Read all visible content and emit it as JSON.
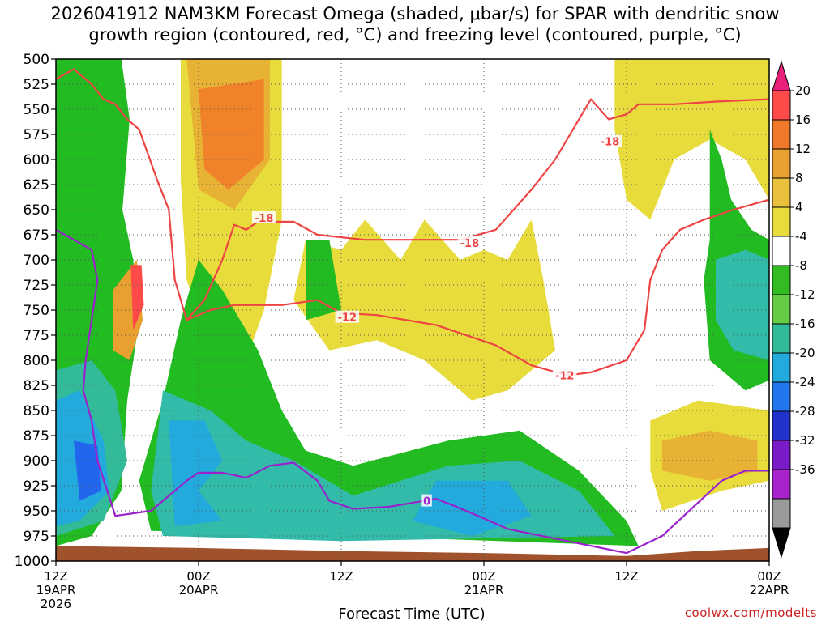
{
  "chart_data": {
    "type": "heatmap",
    "title_line1": "2026041912 NAM3KM Forecast Omega (shaded, μbar/s) for SPAR with dendritic snow",
    "title_line2": "growth region (contoured, red, °C) and freezing level (contoured, purple, °C)",
    "xlabel": "Forecast Time (UTC)",
    "credit": "coolwx.com/modelts",
    "x_hours_range": [
      0,
      60
    ],
    "y_pressure_range": [
      500,
      1000
    ],
    "y_ticks": [
      "500",
      "525",
      "550",
      "575",
      "600",
      "625",
      "650",
      "675",
      "700",
      "725",
      "750",
      "775",
      "800",
      "825",
      "850",
      "875",
      "900",
      "925",
      "950",
      "975",
      "1000"
    ],
    "x_ticks": [
      {
        "hour": 0,
        "line1": "12Z",
        "line2": "19APR",
        "line3": "2026"
      },
      {
        "hour": 12,
        "line1": "00Z",
        "line2": "20APR",
        "line3": ""
      },
      {
        "hour": 24,
        "line1": "12Z",
        "line2": "",
        "line3": ""
      },
      {
        "hour": 36,
        "line1": "00Z",
        "line2": "21APR",
        "line3": ""
      },
      {
        "hour": 48,
        "line1": "12Z",
        "line2": "",
        "line3": ""
      },
      {
        "hour": 60,
        "line1": "00Z",
        "line2": "22APR",
        "line3": ""
      }
    ],
    "colorbar": {
      "labels": [
        "20",
        "16",
        "12",
        "8",
        "4",
        "-4",
        "-8",
        "-12",
        "-16",
        "-20",
        "-24",
        "-28",
        "-32",
        "-36"
      ],
      "colors": [
        "#ff4a4a",
        "#f0782a",
        "#e8a030",
        "#eac13c",
        "#e8dc3c",
        "#ffffff",
        "#33bb22",
        "#66cc44",
        "#33bb99",
        "#22aadd",
        "#2277ee",
        "#2233cc",
        "#7a1bc8",
        "#aa22cc",
        "#999999"
      ],
      "top_arrow_color": "#e8207a",
      "bottom_arrow_color": "#000000"
    },
    "shaded_regions": [
      {
        "name": "omega-region-1",
        "value": -8,
        "color": "#22bb22",
        "points": [
          [
            0,
            500
          ],
          [
            5.5,
            500
          ],
          [
            6.2,
            560
          ],
          [
            5.6,
            650
          ],
          [
            6.5,
            700
          ],
          [
            7,
            760
          ],
          [
            6,
            840
          ],
          [
            5.5,
            930
          ],
          [
            3,
            975
          ],
          [
            0,
            985
          ]
        ]
      },
      {
        "name": "omega-region-2",
        "value": -12,
        "color": "#33bb99",
        "points": [
          [
            0,
            810
          ],
          [
            3,
            800
          ],
          [
            5,
            830
          ],
          [
            6,
            900
          ],
          [
            4,
            960
          ],
          [
            0,
            975
          ]
        ]
      },
      {
        "name": "omega-region-3",
        "value": -16,
        "color": "#22aadd",
        "points": [
          [
            0,
            840
          ],
          [
            2,
            830
          ],
          [
            4,
            880
          ],
          [
            4.5,
            930
          ],
          [
            2,
            960
          ],
          [
            0,
            965
          ]
        ]
      },
      {
        "name": "omega-region-4",
        "value": -20,
        "color": "#2266ee",
        "points": [
          [
            1.5,
            880
          ],
          [
            3.5,
            885
          ],
          [
            3.8,
            930
          ],
          [
            2,
            940
          ]
        ]
      },
      {
        "name": "omega-region-5",
        "value": 4,
        "color": "#e8dc3c",
        "points": [
          [
            10.5,
            500
          ],
          [
            19,
            500
          ],
          [
            19,
            660
          ],
          [
            17.5,
            750
          ],
          [
            16,
            800
          ],
          [
            13,
            790
          ],
          [
            11,
            720
          ],
          [
            10.5,
            620
          ]
        ]
      },
      {
        "name": "omega-region-6",
        "value": 8,
        "color": "#e8b234",
        "points": [
          [
            11,
            500
          ],
          [
            18,
            500
          ],
          [
            18,
            600
          ],
          [
            15,
            650
          ],
          [
            12,
            630
          ]
        ]
      },
      {
        "name": "omega-region-7",
        "value": 12,
        "color": "#f0822a",
        "points": [
          [
            12,
            530
          ],
          [
            17.5,
            520
          ],
          [
            17.5,
            600
          ],
          [
            14.5,
            630
          ],
          [
            12.5,
            610
          ]
        ]
      },
      {
        "name": "omega-region-8",
        "value": 12,
        "color": "#e8a030",
        "points": [
          [
            4.8,
            730
          ],
          [
            6.8,
            700
          ],
          [
            7.3,
            760
          ],
          [
            6.2,
            800
          ],
          [
            4.8,
            790
          ]
        ]
      },
      {
        "name": "omega-region-9",
        "value": 16,
        "color": "#ff4a4a",
        "points": [
          [
            6.3,
            705
          ],
          [
            7.2,
            705
          ],
          [
            7.4,
            745
          ],
          [
            6.5,
            770
          ]
        ]
      },
      {
        "name": "omega-region-10",
        "value": -8,
        "color": "#22bb22",
        "points": [
          [
            12,
            700
          ],
          [
            14,
            730
          ],
          [
            17,
            790
          ],
          [
            19,
            850
          ],
          [
            21,
            890
          ],
          [
            25,
            905
          ],
          [
            33,
            880
          ],
          [
            39,
            870
          ],
          [
            44,
            910
          ],
          [
            48,
            960
          ],
          [
            49,
            985
          ],
          [
            25,
            975
          ],
          [
            8,
            970
          ],
          [
            7,
            920
          ],
          [
            9,
            840
          ],
          [
            10.5,
            760
          ]
        ]
      },
      {
        "name": "omega-region-11",
        "value": -12,
        "color": "#33bbaa",
        "points": [
          [
            9,
            830
          ],
          [
            13,
            850
          ],
          [
            16,
            880
          ],
          [
            20,
            900
          ],
          [
            25,
            935
          ],
          [
            33,
            905
          ],
          [
            39,
            900
          ],
          [
            44,
            930
          ],
          [
            47,
            975
          ],
          [
            24,
            980
          ],
          [
            9,
            975
          ],
          [
            8,
            930
          ]
        ]
      },
      {
        "name": "omega-region-12",
        "value": -16,
        "color": "#22aadd",
        "points": [
          [
            9.5,
            860
          ],
          [
            12.5,
            860
          ],
          [
            14,
            900
          ],
          [
            12,
            930
          ],
          [
            14,
            960
          ],
          [
            10,
            965
          ]
        ]
      },
      {
        "name": "omega-region-13",
        "value": -16,
        "color": "#22aadd",
        "points": [
          [
            32,
            920
          ],
          [
            38,
            920
          ],
          [
            40,
            955
          ],
          [
            35,
            975
          ],
          [
            30,
            960
          ]
        ]
      },
      {
        "name": "omega-region-14",
        "value": 4,
        "color": "#e8dc3c",
        "points": [
          [
            21,
            680
          ],
          [
            24,
            690
          ],
          [
            26,
            660
          ],
          [
            29,
            700
          ],
          [
            31,
            660
          ],
          [
            34,
            700
          ],
          [
            36,
            690
          ],
          [
            38,
            700
          ],
          [
            40,
            660
          ],
          [
            41,
            720
          ],
          [
            42,
            790
          ],
          [
            38,
            830
          ],
          [
            35,
            840
          ],
          [
            31,
            800
          ],
          [
            27,
            780
          ],
          [
            23,
            790
          ],
          [
            20,
            740
          ]
        ]
      },
      {
        "name": "omega-region-15",
        "value": 4,
        "color": "#e8dc3c",
        "points": [
          [
            47,
            500
          ],
          [
            60,
            500
          ],
          [
            60,
            640
          ],
          [
            58,
            600
          ],
          [
            55,
            580
          ],
          [
            52,
            600
          ],
          [
            50,
            660
          ],
          [
            48,
            640
          ],
          [
            47,
            570
          ]
        ]
      },
      {
        "name": "omega-region-16",
        "value": 4,
        "color": "#e8dc3c",
        "points": [
          [
            50,
            860
          ],
          [
            54,
            840
          ],
          [
            60,
            850
          ],
          [
            60,
            920
          ],
          [
            56,
            930
          ],
          [
            51,
            950
          ],
          [
            50,
            910
          ]
        ]
      },
      {
        "name": "omega-region-17",
        "value": 8,
        "color": "#e8b234",
        "points": [
          [
            51,
            880
          ],
          [
            55,
            870
          ],
          [
            59,
            880
          ],
          [
            59,
            910
          ],
          [
            55,
            920
          ],
          [
            51,
            910
          ]
        ]
      },
      {
        "name": "omega-region-18",
        "value": -8,
        "color": "#22bb22",
        "points": [
          [
            55,
            570
          ],
          [
            56,
            600
          ],
          [
            56.8,
            640
          ],
          [
            58.5,
            670
          ],
          [
            60,
            680
          ],
          [
            60,
            820
          ],
          [
            58,
            830
          ],
          [
            55,
            800
          ],
          [
            54.5,
            720
          ],
          [
            55,
            680
          ]
        ]
      },
      {
        "name": "omega-region-19",
        "value": -12,
        "color": "#33bbaa",
        "points": [
          [
            55.5,
            700
          ],
          [
            58,
            690
          ],
          [
            60,
            700
          ],
          [
            60,
            800
          ],
          [
            57,
            790
          ],
          [
            55.5,
            760
          ]
        ]
      },
      {
        "name": "omega-region-20",
        "value": -8,
        "color": "#22bb22",
        "points": [
          [
            21,
            680
          ],
          [
            23,
            680
          ],
          [
            24,
            750
          ],
          [
            21,
            760
          ]
        ]
      }
    ],
    "contours": [
      {
        "name": "dgz-minus18",
        "label": "-18",
        "color": "#ee4444",
        "points": [
          [
            0,
            520
          ],
          [
            1.5,
            510
          ],
          [
            3,
            525
          ],
          [
            4,
            540
          ],
          [
            5,
            545
          ],
          [
            6,
            560
          ],
          [
            7,
            570
          ],
          [
            8.5,
            620
          ],
          [
            9.5,
            650
          ],
          [
            10,
            720
          ],
          [
            11,
            760
          ],
          [
            12.5,
            740
          ],
          [
            14,
            700
          ],
          [
            15,
            665
          ],
          [
            16,
            670
          ],
          [
            17,
            662
          ],
          [
            20,
            662
          ],
          [
            22,
            675
          ],
          [
            26,
            680
          ],
          [
            31,
            680
          ],
          [
            34,
            680
          ],
          [
            37,
            670
          ],
          [
            40,
            630
          ],
          [
            42,
            600
          ],
          [
            45,
            540
          ],
          [
            46.5,
            560
          ],
          [
            48,
            555
          ],
          [
            49,
            545
          ],
          [
            52,
            545
          ],
          [
            56,
            542
          ],
          [
            60,
            540
          ]
        ],
        "label_at": [
          [
            17.5,
            658
          ],
          [
            34.8,
            683
          ],
          [
            46.6,
            582
          ]
        ]
      },
      {
        "name": "dgz-minus12",
        "label": "-12",
        "color": "#ee4444",
        "points": [
          [
            11,
            760
          ],
          [
            13,
            750
          ],
          [
            15,
            745
          ],
          [
            19,
            745
          ],
          [
            22,
            740
          ],
          [
            24,
            753
          ],
          [
            27,
            755
          ],
          [
            32,
            765
          ],
          [
            37,
            785
          ],
          [
            40,
            805
          ],
          [
            43,
            815
          ],
          [
            45,
            812
          ],
          [
            48,
            800
          ],
          [
            49.5,
            770
          ],
          [
            50,
            720
          ],
          [
            51,
            690
          ],
          [
            52.5,
            670
          ],
          [
            54.5,
            660
          ],
          [
            57,
            650
          ],
          [
            60,
            640
          ]
        ],
        "label_at": [
          [
            24.5,
            757
          ],
          [
            42.8,
            815
          ]
        ]
      },
      {
        "name": "freezing-level-0",
        "label": "0",
        "color": "#9a22cc",
        "points": [
          [
            0,
            670
          ],
          [
            1.5,
            680
          ],
          [
            3,
            690
          ],
          [
            3.5,
            720
          ],
          [
            2.5,
            800
          ],
          [
            2.3,
            830
          ],
          [
            3,
            860
          ],
          [
            3.5,
            900
          ],
          [
            5,
            955
          ],
          [
            8,
            950
          ],
          [
            11,
            920
          ],
          [
            12,
            912
          ],
          [
            14,
            912
          ],
          [
            16,
            917
          ],
          [
            18,
            905
          ],
          [
            20,
            902
          ],
          [
            22,
            920
          ],
          [
            23,
            940
          ],
          [
            25,
            948
          ],
          [
            28,
            946
          ],
          [
            30,
            942
          ],
          [
            32,
            938
          ],
          [
            33.5,
            945
          ],
          [
            35.5,
            955
          ],
          [
            38,
            968
          ],
          [
            48,
            992
          ],
          [
            51,
            975
          ],
          [
            56,
            920
          ],
          [
            58,
            910
          ],
          [
            60,
            910
          ]
        ],
        "label_at": [
          [
            31.2,
            940
          ]
        ]
      }
    ],
    "terrain_color": "#a0522d"
  }
}
